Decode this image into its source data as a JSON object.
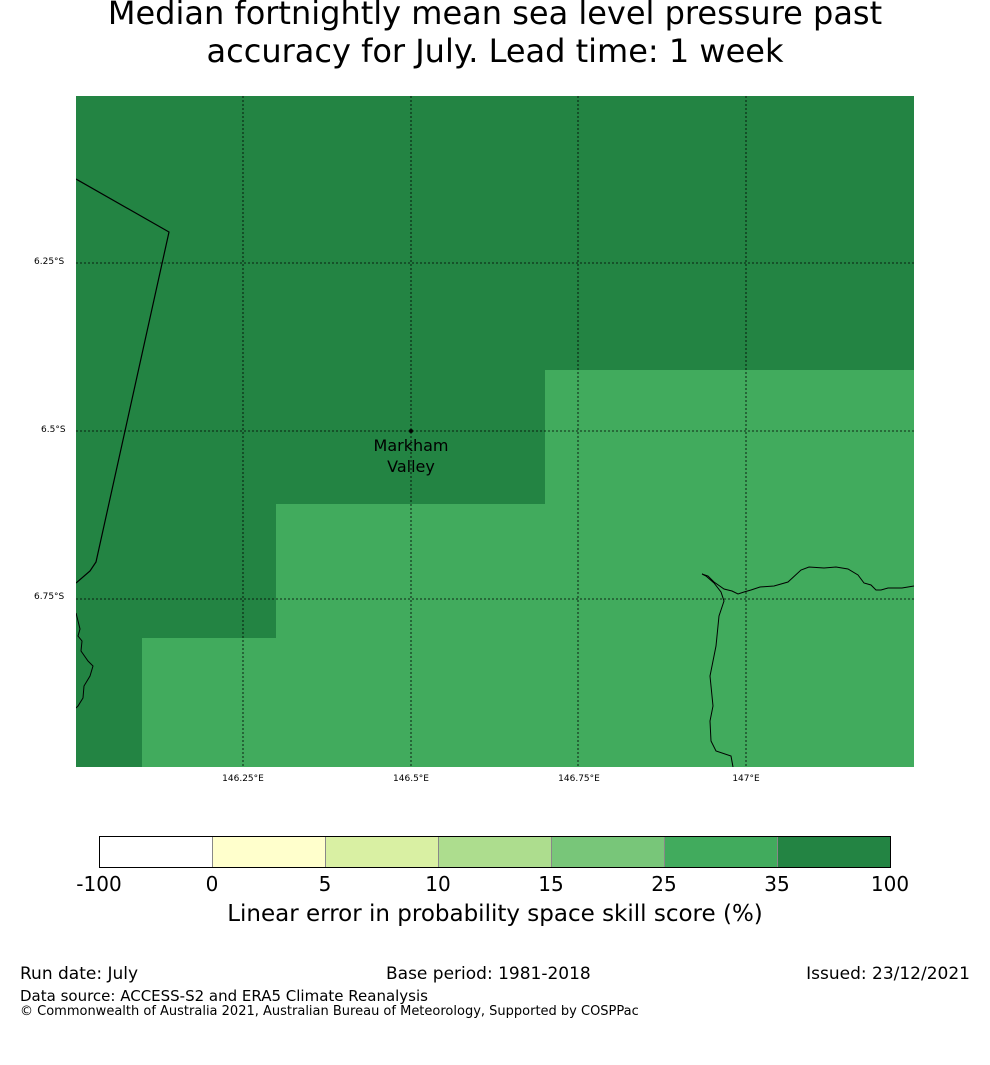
{
  "title": {
    "line1": "Median fortnightly mean sea level pressure past",
    "line2": "accuracy for July. Lead time: 1 week"
  },
  "map": {
    "lat_labels": [
      "6.25°S",
      "6.5°S",
      "6.75°S"
    ],
    "lon_labels": [
      "146.25°E",
      "146.5°E",
      "146.75°E",
      "147°E"
    ],
    "location": {
      "name_line1": "Markham",
      "name_line2": "Valley"
    },
    "colors": {
      "dark_green": "#238443",
      "mid_green": "#41ab5d"
    }
  },
  "colorbar": {
    "colors": [
      "#ffffff",
      "#ffffcc",
      "#d9f0a3",
      "#addd8e",
      "#78c679",
      "#41ab5d",
      "#238443"
    ],
    "ticks": [
      "-100",
      "0",
      "5",
      "10",
      "15",
      "25",
      "35",
      "100"
    ],
    "label": "Linear error in probability space skill score (%)"
  },
  "footer": {
    "run_date": "Run date: July",
    "base_period": "Base period: 1981-2018",
    "issued": "Issued: 23/12/2021",
    "data_source": "Data source: ACCESS-S2 and ERA5 Climate Reanalysis",
    "copyright": "© Commonwealth of Australia 2021, Australian Bureau of Meteorology, Supported by COSPPac"
  }
}
